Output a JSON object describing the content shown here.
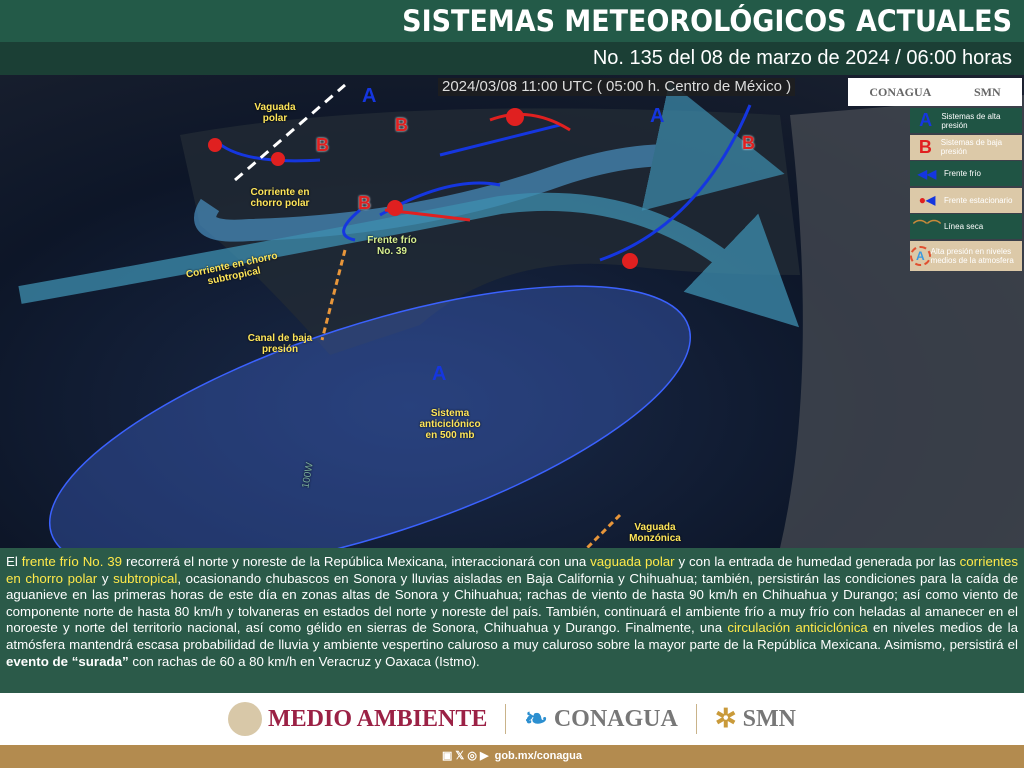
{
  "header": {
    "title": "SISTEMAS METEOROLÓGICOS ACTUALES",
    "subtitle": "No. 135 del 08 de marzo de 2024 / 06:00 horas"
  },
  "map": {
    "timestamp": "2024/03/08 11:00 UTC ( 05:00 h. Centro de México )",
    "logos": [
      "CONAGUA",
      "SMN"
    ],
    "labels": {
      "vaguada_polar": "Vaguada polar",
      "chorro_polar": "Corriente en chorro polar",
      "chorro_subtropical": "Corriente en chorro subtropical",
      "frente_frio": "Frente frío No. 39",
      "canal": "Canal de baja presión",
      "anticiclon": "Sistema anticiclónico en 500 mb",
      "monzonica": "Vaguada Monzónica",
      "meridian": "100W"
    },
    "high_symbol": "A",
    "low_symbol": "B",
    "legend": [
      {
        "icon": "A",
        "label": "Sistemas de alta presión",
        "color": "#1536e0"
      },
      {
        "icon": "B",
        "label": "Sistemas de baja presión",
        "color": "#e02020"
      },
      {
        "icon": "cold-front-icon",
        "label": "Frente frío"
      },
      {
        "icon": "stationary-front-icon",
        "label": "Frente estacionario"
      },
      {
        "icon": "dry-line-icon",
        "label": "Línea seca"
      },
      {
        "icon": "A",
        "label": "Alta presión en niveles medios de la atmosfera"
      }
    ]
  },
  "description": {
    "p1": "El ",
    "h1": "frente frío No. 39",
    "p2": " recorrerá el norte y noreste de la República Mexicana, interaccionará con una ",
    "h2": "vaguada polar",
    "p3": " y con la entrada de humedad generada por las ",
    "h3": "corrientes en chorro polar",
    "p4": " y ",
    "h4": "subtropical",
    "p5": ", ocasionando chubascos en Sonora y lluvias aisladas en Baja California y Chihuahua; también, persistirán las condiciones para la caída de aguanieve en las primeras horas de este día en zonas altas de Sonora y Chihuahua; rachas de viento de hasta 90 km/h en Chihuahua y Durango; así como viento de componente norte de hasta 80 km/h y tolvaneras en estados del norte y noreste del país. También, continuará el ambiente frío a muy frío con heladas al amanecer en el noroeste y norte del territorio nacional, así como gélido en sierras de Sonora, Chihuahua y Durango. Finalmente, una ",
    "h5": "circulación anticiclónica",
    "p6": " en niveles medios de la atmósfera mantendrá escasa probabilidad de lluvia y ambiente vespertino caluroso a muy caluroso sobre la mayor parte de la República Mexicana. Asimismo, persistirá el ",
    "b1": "evento de “surada”",
    "p7": " con rachas de 60 a 80 km/h en Veracruz y Oaxaca (Istmo)."
  },
  "footer": {
    "logo1": "MEDIO AMBIENTE",
    "logo2": "CONAGUA",
    "logo3": "SMN",
    "url": "gob.mx/conagua",
    "social": [
      "facebook-icon",
      "x-icon",
      "instagram-icon",
      "youtube-icon"
    ]
  },
  "colors": {
    "header": "#235a48",
    "panel": "#2b5a49",
    "highlight": "#ffe94a",
    "high": "#1536e0",
    "low": "#e02020",
    "footer_bar": "#b38b4f"
  }
}
